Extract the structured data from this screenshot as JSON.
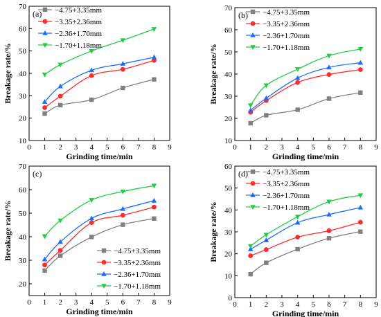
{
  "chart_data": [
    {
      "type": "line",
      "label": "(a)",
      "xlabel": "Grinding time/min",
      "ylabel": "Breakage rate/%",
      "xlim": [
        0,
        9
      ],
      "ylim": [
        10,
        70
      ],
      "xticks": [
        0,
        1,
        2,
        3,
        4,
        5,
        6,
        7,
        8,
        9
      ],
      "yticks": [
        10,
        20,
        30,
        40,
        50,
        60,
        70
      ],
      "legend_position": "top-left",
      "series": [
        {
          "name": "−4.75+3.35mm",
          "color": "#808080",
          "marker": "square",
          "x": [
            1,
            2,
            4,
            6,
            8
          ],
          "y": [
            22.0,
            25.8,
            28.2,
            33.5,
            37.3
          ]
        },
        {
          "name": "−3.35+2.36mm",
          "color": "#ff2a2a",
          "marker": "circle",
          "x": [
            1,
            2,
            4,
            6,
            8
          ],
          "y": [
            24.7,
            29.8,
            39.0,
            41.8,
            45.8
          ]
        },
        {
          "name": "−2.36+1.70mm",
          "color": "#1a6bff",
          "marker": "triangle-up",
          "x": [
            1,
            2,
            4,
            6,
            8
          ],
          "y": [
            27.3,
            34.2,
            41.4,
            44.3,
            47.2
          ]
        },
        {
          "name": "−1.70+1.18mm",
          "color": "#22cc44",
          "marker": "triangle-down",
          "x": [
            1,
            2,
            4,
            6,
            8
          ],
          "y": [
            39.5,
            43.9,
            50.0,
            54.8,
            59.8
          ]
        }
      ]
    },
    {
      "type": "line",
      "label": "(b)",
      "xlabel": "Grinding time/min",
      "ylabel": "Breakage rate/%",
      "xlim": [
        0,
        9
      ],
      "ylim": [
        10,
        70
      ],
      "xticks": [
        0,
        1,
        2,
        3,
        4,
        5,
        6,
        7,
        8,
        9
      ],
      "yticks": [
        10,
        20,
        30,
        40,
        50,
        60,
        70
      ],
      "legend_position": "top-right",
      "series": [
        {
          "name": "−4.75+3.35mm",
          "color": "#808080",
          "marker": "square",
          "x": [
            1,
            2,
            4,
            6,
            8
          ],
          "y": [
            17.8,
            21.4,
            23.9,
            28.9,
            31.6
          ]
        },
        {
          "name": "−3.35+2.36mm",
          "color": "#ff2a2a",
          "marker": "circle",
          "x": [
            1,
            2,
            4,
            6,
            8
          ],
          "y": [
            22.8,
            28.0,
            36.2,
            39.8,
            42.0
          ]
        },
        {
          "name": "−2.36+1.70mm",
          "color": "#1a6bff",
          "marker": "triangle-up",
          "x": [
            1,
            2,
            4,
            6,
            8
          ],
          "y": [
            23.6,
            29.1,
            38.2,
            43.0,
            45.1
          ]
        },
        {
          "name": "−1.70+1.18mm",
          "color": "#22cc44",
          "marker": "triangle-down",
          "x": [
            1,
            2,
            4,
            6,
            8
          ],
          "y": [
            25.9,
            34.9,
            42.2,
            48.3,
            51.3
          ]
        }
      ]
    },
    {
      "type": "line",
      "label": "(c)",
      "xlabel": "Grinding time/min",
      "ylabel": "Breakage rate/%",
      "xlim": [
        0,
        9
      ],
      "ylim": [
        15,
        70
      ],
      "xticks": [
        0,
        1,
        2,
        3,
        4,
        5,
        6,
        7,
        8,
        9
      ],
      "yticks": [
        20,
        30,
        40,
        50,
        60,
        70
      ],
      "legend_position": "bottom-right",
      "series": [
        {
          "name": "−4.75+3.35mm",
          "color": "#808080",
          "marker": "square",
          "x": [
            1,
            2,
            4,
            6,
            8
          ],
          "y": [
            25.6,
            31.9,
            39.9,
            45.1,
            47.7
          ]
        },
        {
          "name": "−3.35+2.36mm",
          "color": "#ff2a2a",
          "marker": "circle",
          "x": [
            1,
            2,
            4,
            6,
            8
          ],
          "y": [
            28.0,
            34.2,
            46.0,
            49.1,
            52.6
          ]
        },
        {
          "name": "−2.36+1.70mm",
          "color": "#1a6bff",
          "marker": "triangle-up",
          "x": [
            1,
            2,
            4,
            6,
            8
          ],
          "y": [
            30.4,
            37.8,
            47.8,
            51.8,
            55.3
          ]
        },
        {
          "name": "−1.70+1.18mm",
          "color": "#22cc44",
          "marker": "triangle-down",
          "x": [
            1,
            2,
            4,
            6,
            8
          ],
          "y": [
            40.2,
            46.9,
            55.6,
            59.2,
            61.7
          ]
        }
      ]
    },
    {
      "type": "line",
      "label": "(d)",
      "xlabel": "Grinding time/min",
      "ylabel": "Breakage rate/%",
      "xlim": [
        0,
        9
      ],
      "ylim": [
        0,
        60
      ],
      "xticks": [
        0,
        1,
        2,
        3,
        4,
        5,
        6,
        7,
        8,
        9
      ],
      "yticks": [
        0,
        10,
        20,
        30,
        40,
        50,
        60
      ],
      "legend_position": "top-right",
      "series": [
        {
          "name": "−4.75+3.35mm",
          "color": "#808080",
          "marker": "square",
          "x": [
            1,
            2,
            4,
            6,
            8
          ],
          "y": [
            10.7,
            15.9,
            22.1,
            27.1,
            30.1
          ]
        },
        {
          "name": "−3.35+2.36mm",
          "color": "#ff2a2a",
          "marker": "circle",
          "x": [
            1,
            2,
            4,
            6,
            8
          ],
          "y": [
            19.1,
            21.9,
            27.6,
            30.5,
            34.4
          ]
        },
        {
          "name": "−2.36+1.70mm",
          "color": "#1a6bff",
          "marker": "triangle-up",
          "x": [
            1,
            2,
            4,
            6,
            8
          ],
          "y": [
            22.1,
            26.2,
            34.2,
            37.9,
            41.1
          ]
        },
        {
          "name": "−1.70+1.18mm",
          "color": "#22cc44",
          "marker": "triangle-down",
          "x": [
            1,
            2,
            4,
            6,
            8
          ],
          "y": [
            23.5,
            28.7,
            36.9,
            43.8,
            46.7
          ]
        }
      ]
    }
  ]
}
